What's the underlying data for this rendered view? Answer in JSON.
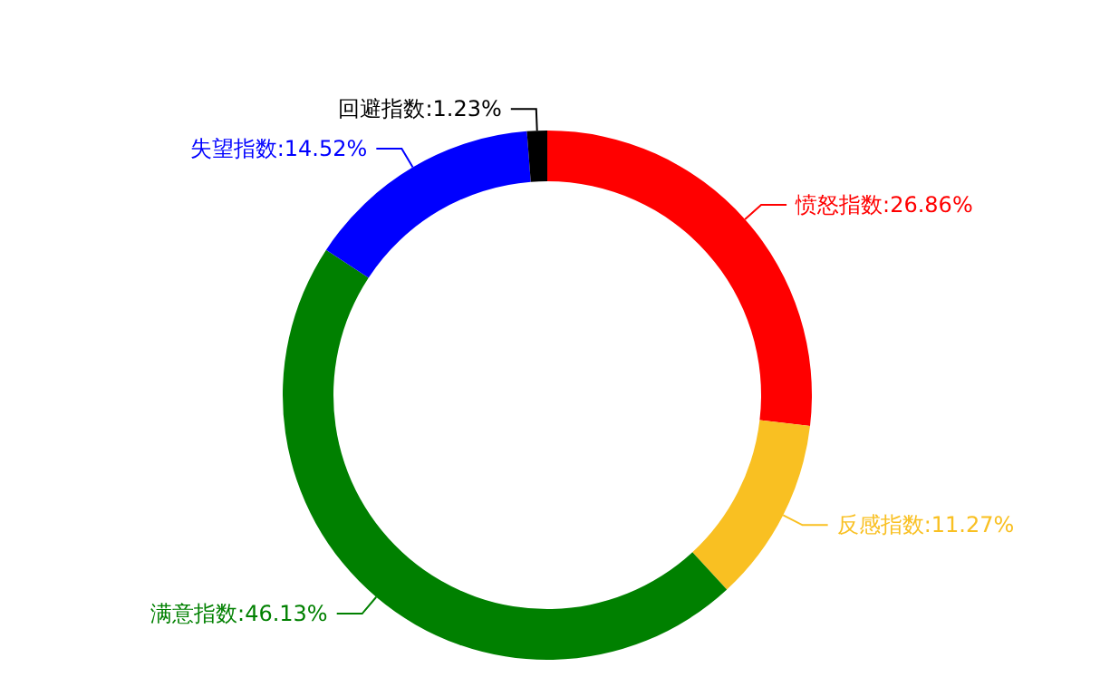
{
  "chart_data": {
    "type": "donut",
    "categories": [
      "愤怒指数",
      "反感指数",
      "满意指数",
      "失望指数",
      "回避指数"
    ],
    "values": [
      26.86,
      11.27,
      46.13,
      14.52,
      1.23
    ],
    "value_labels": [
      ":26.86%",
      ":11.27%",
      ":46.13%",
      ":14.52%",
      ":1.23%"
    ],
    "colors": [
      "#ff0000",
      "#f9c022",
      "#008000",
      "#0000ff",
      "#000000"
    ],
    "legend": false
  }
}
